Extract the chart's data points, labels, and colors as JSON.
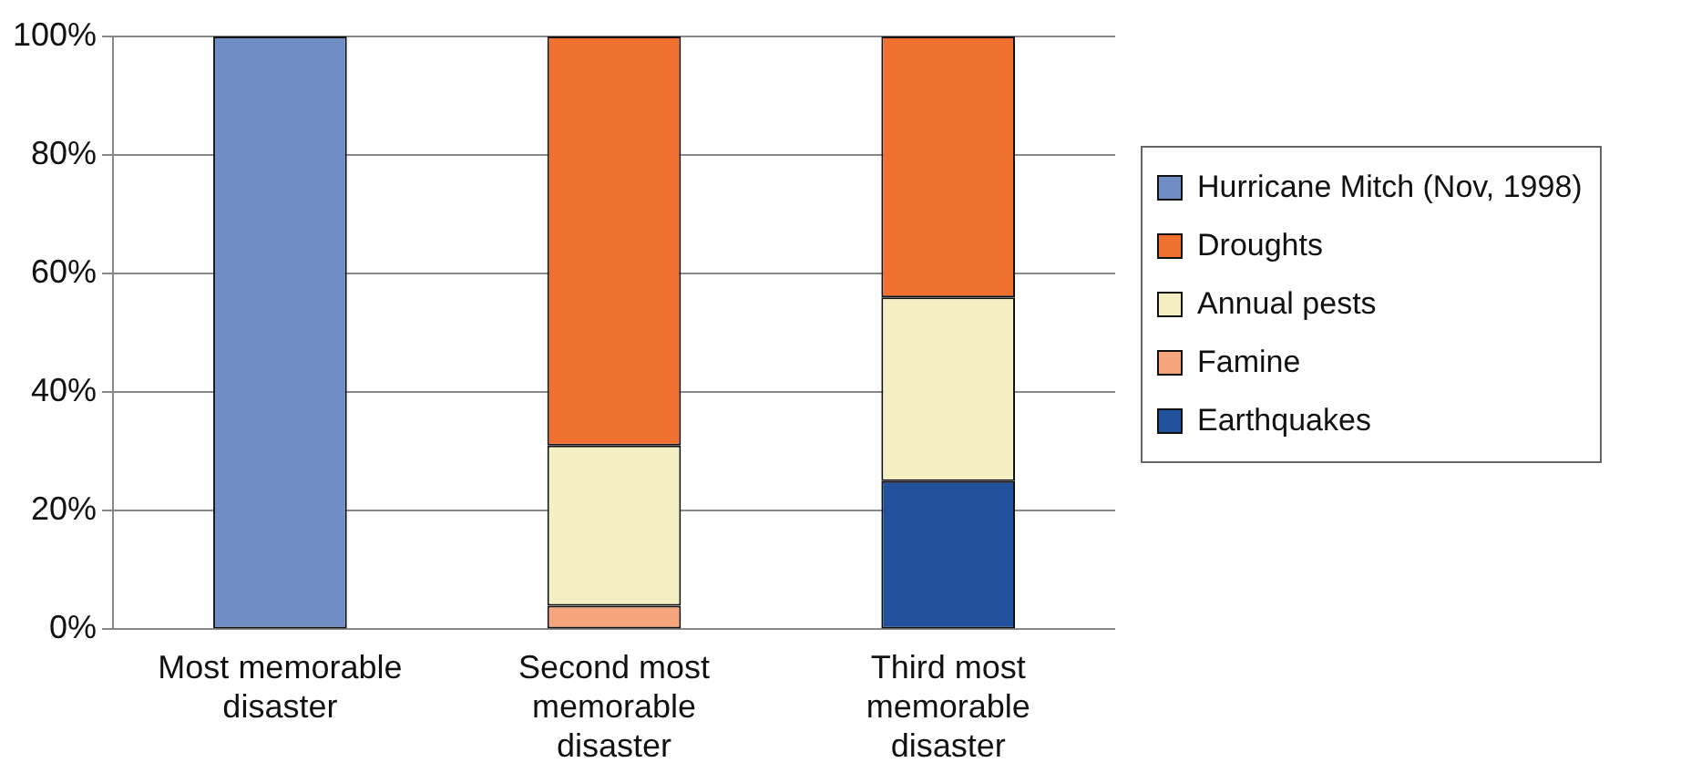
{
  "chart_data": {
    "type": "bar",
    "stacked": true,
    "categories": [
      "Most memorable disaster",
      "Second most memorable disaster",
      "Third most memorable disaster"
    ],
    "series": [
      {
        "name": "Earthquakes",
        "color": "#21509c",
        "values": [
          null,
          null,
          25
        ]
      },
      {
        "name": "Famine",
        "color": "#f6a57c",
        "values": [
          null,
          4,
          null
        ]
      },
      {
        "name": "Annual pests",
        "color": "#f5efc4",
        "values": [
          null,
          27,
          31
        ]
      },
      {
        "name": "Droughts",
        "color": "#f07030",
        "values": [
          null,
          69,
          44
        ]
      },
      {
        "name": "Hurricane Mitch (Nov, 1998)",
        "color": "#6f8cc4",
        "values": [
          100,
          null,
          null
        ]
      }
    ],
    "ylim": [
      0,
      100
    ],
    "yticks": [
      {
        "value": 0,
        "label": "0%"
      },
      {
        "value": 20,
        "label": "20%"
      },
      {
        "value": 40,
        "label": "40%"
      },
      {
        "value": 60,
        "label": "60%"
      },
      {
        "value": 80,
        "label": "80%"
      },
      {
        "value": 100,
        "label": "100%"
      }
    ],
    "grid": "y",
    "legend": "right"
  }
}
